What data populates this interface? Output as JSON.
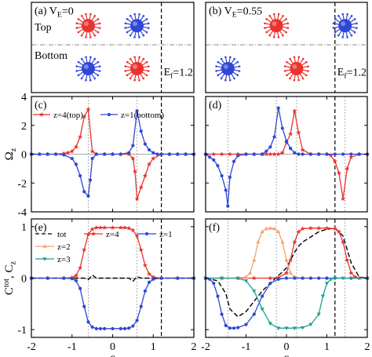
{
  "figure": {
    "shared_xticks": [
      "-2",
      "-1",
      "0",
      "1",
      "2"
    ],
    "shared_xlabel": "ε"
  },
  "chart_data": [
    {
      "panel": "(a)",
      "type": "schematic",
      "label": "(a) V",
      "label_sub": "E",
      "label_tail": "=0",
      "row_labels": [
        "Top",
        "Bottom"
      ],
      "fermi_label": "E",
      "fermi_sub": "f",
      "fermi_tail": "=1.2",
      "fermi_x": 1.2,
      "particles": [
        {
          "layer": "top",
          "x": -0.6,
          "color": "#e8332f"
        },
        {
          "layer": "top",
          "x": 0.6,
          "color": "#2f47d6"
        },
        {
          "layer": "bottom",
          "x": -0.6,
          "color": "#2f47d6"
        },
        {
          "layer": "bottom",
          "x": 0.6,
          "color": "#e8332f"
        }
      ],
      "xlim": [
        -2,
        2
      ]
    },
    {
      "panel": "(b)",
      "type": "schematic",
      "label": "(b) V",
      "label_sub": "E",
      "label_tail": "=0.55",
      "fermi_label": "E",
      "fermi_sub": "f",
      "fermi_tail": "=1.2",
      "fermi_x": 1.2,
      "particles": [
        {
          "layer": "top",
          "x": -0.25,
          "color": "#e8332f"
        },
        {
          "layer": "top",
          "x": 1.45,
          "color": "#2f47d6"
        },
        {
          "layer": "bottom",
          "x": -1.45,
          "color": "#2f47d6"
        },
        {
          "layer": "bottom",
          "x": 0.25,
          "color": "#e8332f"
        }
      ],
      "xlim": [
        -2,
        2
      ]
    },
    {
      "panel": "(c)",
      "type": "line",
      "label": "(c)",
      "ylabel": "Ω",
      "ylabel_sub": "z",
      "ylim": [
        -4,
        4
      ],
      "yticks": [
        "4",
        "2",
        "0",
        "-2",
        "-4"
      ],
      "xlim": [
        -2,
        2
      ],
      "vlines_dotted": [
        -0.6,
        0.6
      ],
      "vline_dashed": 1.2,
      "legend": [
        {
          "text": "z=4(top)",
          "color": "#e8332f",
          "marker": "star"
        },
        {
          "text": "z=1(bottom)",
          "color": "#2f47d6",
          "marker": "circle"
        }
      ],
      "series": [
        {
          "name": "z=4(top)",
          "color": "#e8332f",
          "marker": "star",
          "x": [
            -2.0,
            -1.8,
            -1.6,
            -1.4,
            -1.2,
            -1.1,
            -1.0,
            -0.9,
            -0.8,
            -0.7,
            -0.6,
            -0.5,
            -0.4,
            -0.2,
            0.0,
            0.2,
            0.4,
            0.5,
            0.55,
            0.6,
            0.7,
            0.8,
            0.9,
            1.0,
            1.2,
            1.4,
            1.6,
            1.8,
            2.0
          ],
          "y": [
            0.0,
            0.0,
            0.0,
            0.0,
            0.05,
            0.1,
            0.2,
            0.5,
            1.2,
            2.6,
            3.1,
            0.2,
            0.0,
            0.0,
            0.0,
            0.0,
            0.0,
            -0.3,
            -1.2,
            -3.1,
            -2.3,
            -1.5,
            -0.7,
            -0.3,
            0.0,
            0.0,
            0.0,
            0.0,
            0.0
          ]
        },
        {
          "name": "z=1(bottom)",
          "color": "#2f47d6",
          "marker": "circle",
          "x": [
            -2.0,
            -1.8,
            -1.6,
            -1.4,
            -1.2,
            -1.0,
            -0.9,
            -0.8,
            -0.7,
            -0.6,
            -0.55,
            -0.5,
            -0.4,
            -0.2,
            0.0,
            0.2,
            0.4,
            0.5,
            0.6,
            0.7,
            0.8,
            0.9,
            1.0,
            1.1,
            1.2,
            1.4,
            1.6,
            1.8,
            2.0
          ],
          "y": [
            0.0,
            0.0,
            0.0,
            0.0,
            -0.05,
            -0.3,
            -0.7,
            -1.5,
            -2.6,
            -2.9,
            -1.8,
            -0.3,
            0.0,
            0.0,
            0.0,
            0.0,
            0.1,
            0.6,
            3.0,
            1.6,
            0.7,
            0.3,
            0.1,
            0.0,
            0.0,
            0.0,
            0.0,
            0.0,
            0.0
          ]
        }
      ]
    },
    {
      "panel": "(d)",
      "type": "line",
      "label": "(d)",
      "ylim": [
        -4,
        4
      ],
      "xlim": [
        -2,
        2
      ],
      "vlines_dotted": [
        -1.45,
        -0.25,
        0.25,
        1.45
      ],
      "vline_dashed": 1.2,
      "series": [
        {
          "name": "z=4",
          "color": "#e8332f",
          "marker": "star",
          "x": [
            -2.0,
            -1.8,
            -1.6,
            -1.4,
            -1.2,
            -1.0,
            -0.8,
            -0.6,
            -0.5,
            -0.4,
            -0.3,
            -0.2,
            -0.1,
            0.0,
            0.1,
            0.2,
            0.3,
            0.4,
            0.6,
            0.8,
            1.0,
            1.1,
            1.2,
            1.3,
            1.4,
            1.5,
            1.6,
            1.8,
            2.0
          ],
          "y": [
            0.0,
            0.0,
            0.0,
            0.0,
            0.0,
            0.0,
            0.0,
            0.0,
            0.0,
            0.0,
            0.0,
            0.0,
            0.1,
            0.8,
            1.4,
            3.0,
            1.5,
            0.3,
            0.0,
            0.0,
            0.0,
            -0.1,
            -0.5,
            -1.3,
            -3.1,
            -1.0,
            -0.2,
            0.0,
            0.0
          ]
        },
        {
          "name": "z=1",
          "color": "#2f47d6",
          "marker": "circle",
          "x": [
            -2.0,
            -1.9,
            -1.8,
            -1.7,
            -1.6,
            -1.5,
            -1.45,
            -1.4,
            -1.3,
            -1.2,
            -1.0,
            -0.8,
            -0.6,
            -0.5,
            -0.4,
            -0.3,
            -0.2,
            -0.1,
            0.0,
            0.1,
            0.2,
            0.3,
            0.4,
            0.6,
            0.8,
            1.0,
            1.2,
            1.4,
            1.6,
            1.8,
            2.0
          ],
          "y": [
            0.0,
            -0.2,
            -0.4,
            -0.8,
            -1.5,
            -2.5,
            -3.6,
            -1.6,
            -0.5,
            -0.1,
            0.0,
            0.0,
            0.0,
            0.2,
            0.5,
            1.2,
            3.2,
            1.8,
            0.9,
            0.4,
            0.1,
            0.0,
            0.0,
            0.0,
            0.0,
            0.0,
            0.0,
            0.0,
            0.0,
            0.0,
            0.0
          ]
        }
      ]
    },
    {
      "panel": "(e)",
      "type": "line",
      "label": "(e)",
      "ylabel": "C",
      "ylabel_sup": "tot",
      "ylabel_mid": ", C",
      "ylabel_sub": "z",
      "ylim": [
        -1.15,
        1.15
      ],
      "yticks": [
        "1",
        "0",
        "-1"
      ],
      "xlim": [
        -2,
        2
      ],
      "vlines_dotted": [
        -0.6,
        0.6
      ],
      "vline_dashed": 1.2,
      "legend": [
        {
          "text": "tot",
          "color": "#000000",
          "marker": "dash"
        },
        {
          "text": "z=4",
          "color": "#e8332f",
          "marker": "star"
        },
        {
          "text": "z=2",
          "color": "#f4a26a",
          "marker": "triangle"
        },
        {
          "text": "z=1",
          "color": "#2f47d6",
          "marker": "circle"
        },
        {
          "text": "z=3",
          "color": "#1f9e92",
          "marker": "tri-down"
        }
      ],
      "series": [
        {
          "name": "tot",
          "color": "#000000",
          "marker": "dash",
          "x": [
            -2.0,
            -1.0,
            -0.7,
            -0.6,
            -0.5,
            -0.4,
            -0.2,
            0.0,
            0.2,
            0.4,
            0.5,
            0.6,
            0.7,
            1.0,
            2.0
          ],
          "y": [
            0.0,
            0.0,
            0.0,
            -0.03,
            0.06,
            0.0,
            0.0,
            0.0,
            0.0,
            0.0,
            -0.06,
            0.03,
            0.0,
            0.0,
            0.0
          ]
        },
        {
          "name": "z=4",
          "color": "#e8332f",
          "marker": "star",
          "x": [
            -2.0,
            -1.6,
            -1.2,
            -1.0,
            -0.9,
            -0.8,
            -0.7,
            -0.6,
            -0.5,
            -0.4,
            -0.3,
            -0.2,
            0.0,
            0.2,
            0.3,
            0.4,
            0.5,
            0.6,
            0.7,
            0.8,
            0.9,
            1.0,
            1.2,
            1.6,
            2.0
          ],
          "y": [
            0.0,
            0.0,
            0.0,
            0.01,
            0.05,
            0.2,
            0.55,
            0.85,
            0.95,
            0.98,
            0.98,
            0.98,
            0.98,
            0.98,
            0.98,
            0.97,
            0.93,
            0.82,
            0.55,
            0.25,
            0.08,
            0.02,
            0.0,
            0.0,
            0.0
          ]
        },
        {
          "name": "z=1",
          "color": "#2f47d6",
          "marker": "circle",
          "x": [
            -2.0,
            -1.6,
            -1.2,
            -1.0,
            -0.9,
            -0.8,
            -0.7,
            -0.6,
            -0.5,
            -0.4,
            -0.3,
            -0.2,
            0.0,
            0.2,
            0.3,
            0.4,
            0.5,
            0.6,
            0.7,
            0.8,
            0.9,
            1.0,
            1.2,
            1.6,
            2.0
          ],
          "y": [
            0.0,
            0.0,
            0.0,
            -0.01,
            -0.05,
            -0.2,
            -0.55,
            -0.85,
            -0.95,
            -0.98,
            -0.98,
            -0.98,
            -0.98,
            -0.98,
            -0.98,
            -0.97,
            -0.93,
            -0.82,
            -0.55,
            -0.25,
            -0.08,
            -0.02,
            0.0,
            0.0,
            0.0
          ]
        }
      ]
    },
    {
      "panel": "(f)",
      "type": "line",
      "label": "(f)",
      "ylim": [
        -1.15,
        1.15
      ],
      "xlim": [
        -2,
        2
      ],
      "vlines_dotted": [
        -1.45,
        -0.25,
        0.25,
        1.45
      ],
      "vline_dashed": 1.2,
      "series": [
        {
          "name": "tot",
          "color": "#000000",
          "marker": "dash",
          "x": [
            -2.0,
            -1.7,
            -1.5,
            -1.4,
            -1.2,
            -1.0,
            -0.8,
            -0.6,
            -0.4,
            -0.3,
            -0.2,
            -0.1,
            0.0,
            0.1,
            0.2,
            0.3,
            0.4,
            0.6,
            0.8,
            1.0,
            1.2,
            1.4,
            1.6,
            1.8,
            2.0
          ],
          "y": [
            0.0,
            -0.05,
            -0.3,
            -0.6,
            -0.75,
            -0.65,
            -0.45,
            -0.25,
            -0.1,
            -0.02,
            0.05,
            0.12,
            0.2,
            0.35,
            0.5,
            0.62,
            0.7,
            0.8,
            0.9,
            0.95,
            0.97,
            0.82,
            0.3,
            0.02,
            0.0
          ]
        },
        {
          "name": "z=4",
          "color": "#e8332f",
          "marker": "star",
          "x": [
            -2.0,
            -1.6,
            -1.2,
            -0.8,
            -0.4,
            -0.2,
            0.0,
            0.1,
            0.2,
            0.3,
            0.4,
            0.6,
            0.8,
            1.0,
            1.2,
            1.3,
            1.4,
            1.5,
            1.6,
            1.7,
            1.8,
            2.0
          ],
          "y": [
            0.0,
            0.0,
            0.0,
            0.0,
            0.0,
            0.01,
            0.1,
            0.35,
            0.7,
            0.9,
            0.96,
            0.97,
            0.97,
            0.97,
            0.96,
            0.9,
            0.7,
            0.35,
            0.1,
            0.02,
            0.0,
            0.0
          ]
        },
        {
          "name": "z=2",
          "color": "#f4a26a",
          "marker": "triangle",
          "x": [
            -2.0,
            -1.6,
            -1.2,
            -1.0,
            -0.9,
            -0.8,
            -0.7,
            -0.6,
            -0.5,
            -0.4,
            -0.3,
            -0.2,
            -0.1,
            0.0,
            0.1,
            0.2,
            0.4,
            0.6,
            1.0,
            2.0
          ],
          "y": [
            0.0,
            0.0,
            0.0,
            0.02,
            0.1,
            0.35,
            0.7,
            0.9,
            0.96,
            0.97,
            0.96,
            0.9,
            0.7,
            0.35,
            0.1,
            0.02,
            0.0,
            0.0,
            0.0,
            0.0
          ]
        },
        {
          "name": "z=1",
          "color": "#2f47d6",
          "marker": "circle",
          "x": [
            -2.0,
            -1.9,
            -1.8,
            -1.7,
            -1.6,
            -1.5,
            -1.4,
            -1.3,
            -1.2,
            -1.0,
            -0.8,
            -0.6,
            -0.4,
            -0.2,
            0.0,
            0.2,
            0.4,
            0.6,
            0.8,
            1.0,
            1.2,
            1.6,
            2.0
          ],
          "y": [
            0.0,
            -0.02,
            -0.1,
            -0.35,
            -0.7,
            -0.92,
            -0.97,
            -0.97,
            -0.96,
            -0.9,
            -0.7,
            -0.35,
            -0.1,
            -0.02,
            0.0,
            0.0,
            0.0,
            0.0,
            0.0,
            0.0,
            0.0,
            0.0,
            0.0
          ]
        },
        {
          "name": "z=3",
          "color": "#1f9e92",
          "marker": "tri-down",
          "x": [
            -2.0,
            -1.6,
            -1.2,
            -1.0,
            -0.8,
            -0.6,
            -0.4,
            -0.2,
            0.0,
            0.2,
            0.4,
            0.6,
            0.8,
            0.9,
            1.0,
            1.1,
            1.2,
            1.4,
            1.6,
            2.0
          ],
          "y": [
            0.0,
            0.0,
            0.0,
            -0.05,
            -0.25,
            -0.6,
            -0.88,
            -0.97,
            -0.97,
            -0.97,
            -0.96,
            -0.9,
            -0.7,
            -0.35,
            -0.1,
            -0.02,
            0.0,
            0.0,
            0.0,
            0.0
          ]
        }
      ]
    }
  ]
}
